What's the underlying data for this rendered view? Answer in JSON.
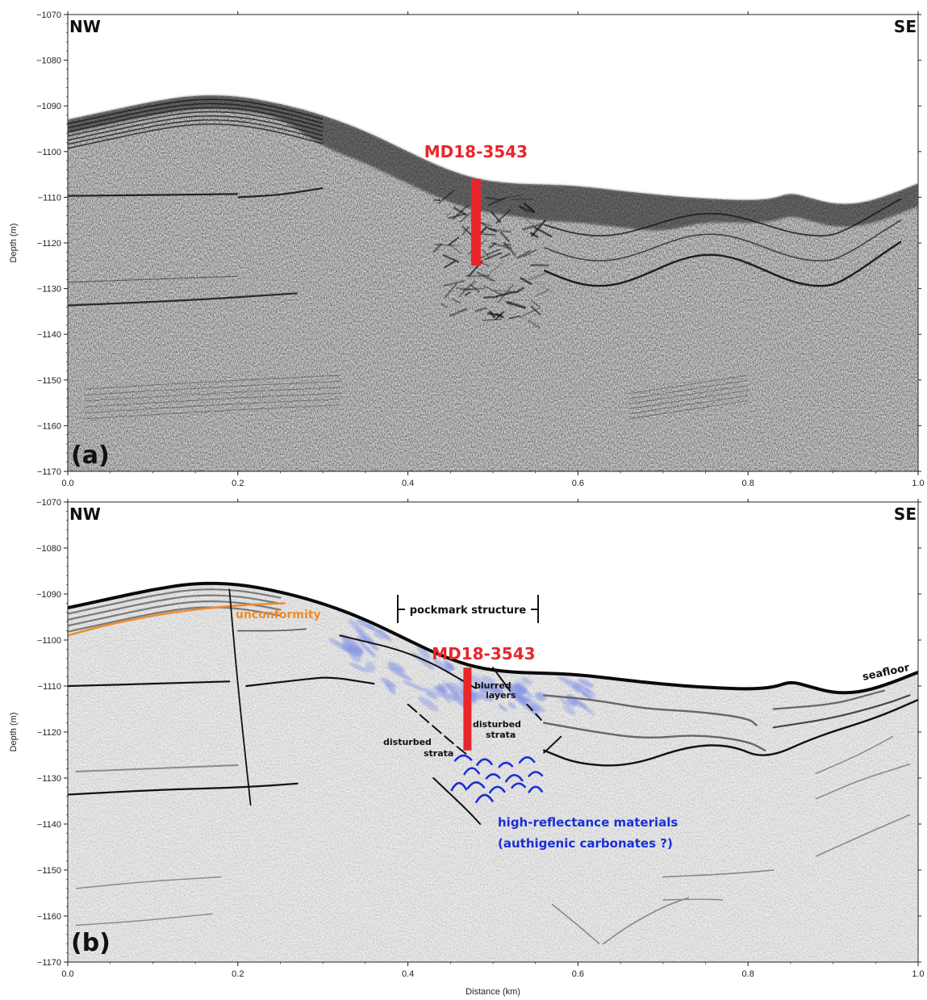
{
  "figure": {
    "x_axis": {
      "label": "Distance (km)",
      "range": [
        0.0,
        1.0
      ],
      "ticks": [
        "0.0",
        "0.2",
        "0.4",
        "0.6",
        "0.8",
        "1.0"
      ]
    },
    "y_axis": {
      "label": "Depth (m)",
      "range": [
        -1170,
        -1070
      ],
      "ticks": [
        "-1070",
        "-1080",
        "-1090",
        "-1100",
        "-1110",
        "-1120",
        "-1130",
        "-1140",
        "-1150",
        "-1160",
        "-1170"
      ]
    },
    "direction_left": "NW",
    "direction_right": "SE"
  },
  "panel_a": {
    "letter": "(a)",
    "core_label": "MD18-3543",
    "core": {
      "distance_km": 0.48,
      "top_depth_m": -1106,
      "bottom_depth_m": -1125
    }
  },
  "panel_b": {
    "letter": "(b)",
    "core_label": "MD18-3543",
    "core": {
      "distance_km": 0.47,
      "top_depth_m": -1106,
      "bottom_depth_m": -1124
    },
    "annotations": {
      "unconformity": "unconformity",
      "pockmark": "pockmark structure",
      "blurred_1": "blurred",
      "blurred_2": "layers",
      "disturbed_right_1": "disturbed",
      "disturbed_right_2": "strata",
      "disturbed_left_1": "disturbed",
      "disturbed_left_2": "strata",
      "high_reflectance_1": "high-reflectance materials",
      "high_reflectance_2": "(authigenic carbonates ?)",
      "seafloor": "seafloor"
    }
  },
  "seafloor_profile": [
    [
      0.0,
      -1093
    ],
    [
      0.05,
      -1091
    ],
    [
      0.1,
      -1089
    ],
    [
      0.15,
      -1087.6
    ],
    [
      0.2,
      -1087.8
    ],
    [
      0.25,
      -1089.5
    ],
    [
      0.3,
      -1092
    ],
    [
      0.35,
      -1095.5
    ],
    [
      0.4,
      -1100
    ],
    [
      0.44,
      -1103.5
    ],
    [
      0.48,
      -1106
    ],
    [
      0.52,
      -1107
    ],
    [
      0.56,
      -1107.2
    ],
    [
      0.6,
      -1107.5
    ],
    [
      0.65,
      -1108.6
    ],
    [
      0.7,
      -1109.6
    ],
    [
      0.75,
      -1110.3
    ],
    [
      0.8,
      -1110.7
    ],
    [
      0.83,
      -1110.3
    ],
    [
      0.85,
      -1109
    ],
    [
      0.87,
      -1110
    ],
    [
      0.9,
      -1111.5
    ],
    [
      0.93,
      -1111.4
    ],
    [
      0.96,
      -1109.9
    ],
    [
      1.0,
      -1107
    ]
  ],
  "colors": {
    "core": "#e8262b",
    "unconformity": "#f08a2c",
    "carbonates": "#1a2fd6",
    "blur_zone": "#7d8ee8",
    "annotation_text": "#111111"
  }
}
